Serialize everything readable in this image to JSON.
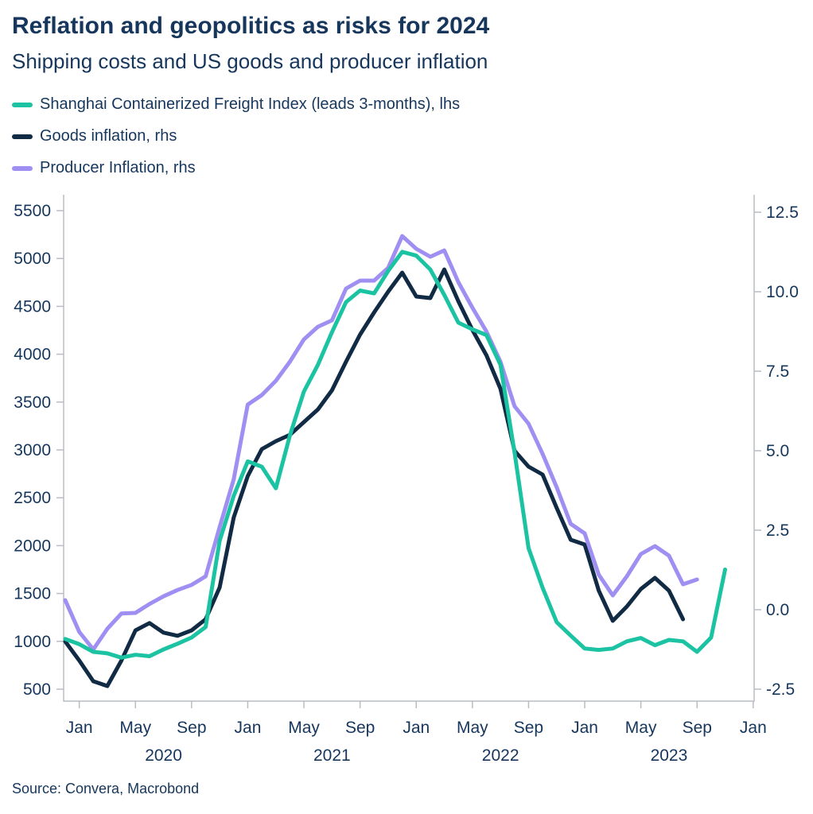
{
  "header": {
    "title": "Reflation and geopolitics as risks for 2024",
    "subtitle": "Shipping costs and US goods and producer inflation"
  },
  "legend": [
    {
      "label": "Shanghai Containerized Freight Index (leads 3-months), lhs",
      "color": "#1BC3A3"
    },
    {
      "label": "Goods inflation, rhs",
      "color": "#112B45"
    },
    {
      "label": "Producer Inflation, rhs",
      "color": "#A08FF2"
    }
  ],
  "source": "Source: Convera, Macrobond",
  "colors": {
    "text": "#16365C",
    "axis": "#B9BDC3",
    "background": "#FFFFFF"
  },
  "chart_data": {
    "type": "line",
    "title": "Reflation and geopolitics as risks for 2024",
    "subtitle": "Shipping costs and US goods and producer inflation",
    "grid": false,
    "legend_position": "top-left",
    "x": {
      "start": "2019-12",
      "step_months": 1,
      "total_slots": 50
    },
    "x_ticks": [
      {
        "i": 1,
        "label": "Jan"
      },
      {
        "i": 5,
        "label": "May"
      },
      {
        "i": 9,
        "label": "Sep"
      },
      {
        "i": 13,
        "label": "Jan"
      },
      {
        "i": 17,
        "label": "May"
      },
      {
        "i": 21,
        "label": "Sep"
      },
      {
        "i": 25,
        "label": "Jan"
      },
      {
        "i": 29,
        "label": "May"
      },
      {
        "i": 33,
        "label": "Sep"
      },
      {
        "i": 37,
        "label": "Jan"
      },
      {
        "i": 41,
        "label": "May"
      },
      {
        "i": 45,
        "label": "Sep"
      },
      {
        "i": 49,
        "label": "Jan"
      }
    ],
    "year_labels": [
      {
        "i": 7,
        "label": "2020"
      },
      {
        "i": 19,
        "label": "2021"
      },
      {
        "i": 31,
        "label": "2022"
      },
      {
        "i": 43,
        "label": "2023"
      }
    ],
    "left_axis": {
      "min": 500,
      "max": 5500,
      "tick_step": 500,
      "tick_values": [
        500,
        1000,
        1500,
        2000,
        2500,
        3000,
        3500,
        4000,
        4500,
        5000,
        5500
      ],
      "tick_labels": [
        "500",
        "1000",
        "1500",
        "2000",
        "2500",
        "3000",
        "3500",
        "4000",
        "4500",
        "5000",
        "5500"
      ]
    },
    "right_axis": {
      "min": -2.5,
      "max": 12.5,
      "tick_step": 2.5,
      "tick_values": [
        -2.5,
        0,
        2.5,
        5,
        7.5,
        10,
        12.5
      ],
      "tick_labels": [
        "-2.5",
        "0.0",
        "2.5",
        "5.0",
        "7.5",
        "10.0",
        "12.5"
      ]
    },
    "series": [
      {
        "name": "Shanghai Containerized Freight Index (leads 3-months), lhs",
        "axis": "left",
        "color": "#1BC3A3",
        "start": "2019-12",
        "values": [
          1025,
          970,
          890,
          875,
          830,
          860,
          845,
          915,
          975,
          1040,
          1150,
          2050,
          2520,
          2880,
          2825,
          2600,
          3150,
          3610,
          3890,
          4230,
          4545,
          4665,
          4635,
          4870,
          5070,
          5030,
          4885,
          4620,
          4330,
          4260,
          4200,
          3890,
          2975,
          1975,
          1560,
          1200,
          1060,
          925,
          910,
          925,
          1000,
          1035,
          960,
          1015,
          1000,
          890,
          1040,
          1750
        ]
      },
      {
        "name": "Goods inflation, rhs",
        "axis": "right",
        "color": "#112B45",
        "start": "2019-12",
        "values": [
          -1.0,
          -1.6,
          -2.25,
          -2.4,
          -1.6,
          -0.65,
          -0.42,
          -0.72,
          -0.82,
          -0.65,
          -0.3,
          0.7,
          2.9,
          4.2,
          5.05,
          5.3,
          5.5,
          5.9,
          6.3,
          6.9,
          7.8,
          8.65,
          9.35,
          10.0,
          10.6,
          9.85,
          9.8,
          10.7,
          9.7,
          8.8,
          8.0,
          6.95,
          5.0,
          4.5,
          4.25,
          3.2,
          2.2,
          2.05,
          0.6,
          -0.35,
          0.1,
          0.65,
          1.0,
          0.6,
          -0.3
        ]
      },
      {
        "name": "Producer Inflation, rhs",
        "axis": "right",
        "color": "#A08FF2",
        "start": "2019-12",
        "values": [
          0.3,
          -0.7,
          -1.25,
          -0.6,
          -0.12,
          -0.1,
          0.18,
          0.42,
          0.62,
          0.78,
          1.05,
          2.6,
          4.1,
          6.45,
          6.75,
          7.2,
          7.8,
          8.5,
          8.9,
          9.1,
          10.1,
          10.35,
          10.35,
          10.75,
          11.75,
          11.35,
          11.1,
          11.3,
          10.3,
          9.5,
          8.75,
          7.8,
          6.4,
          5.85,
          4.9,
          3.85,
          2.7,
          2.4,
          1.1,
          0.45,
          1.05,
          1.75,
          2.0,
          1.7,
          0.8,
          0.95
        ]
      }
    ]
  }
}
